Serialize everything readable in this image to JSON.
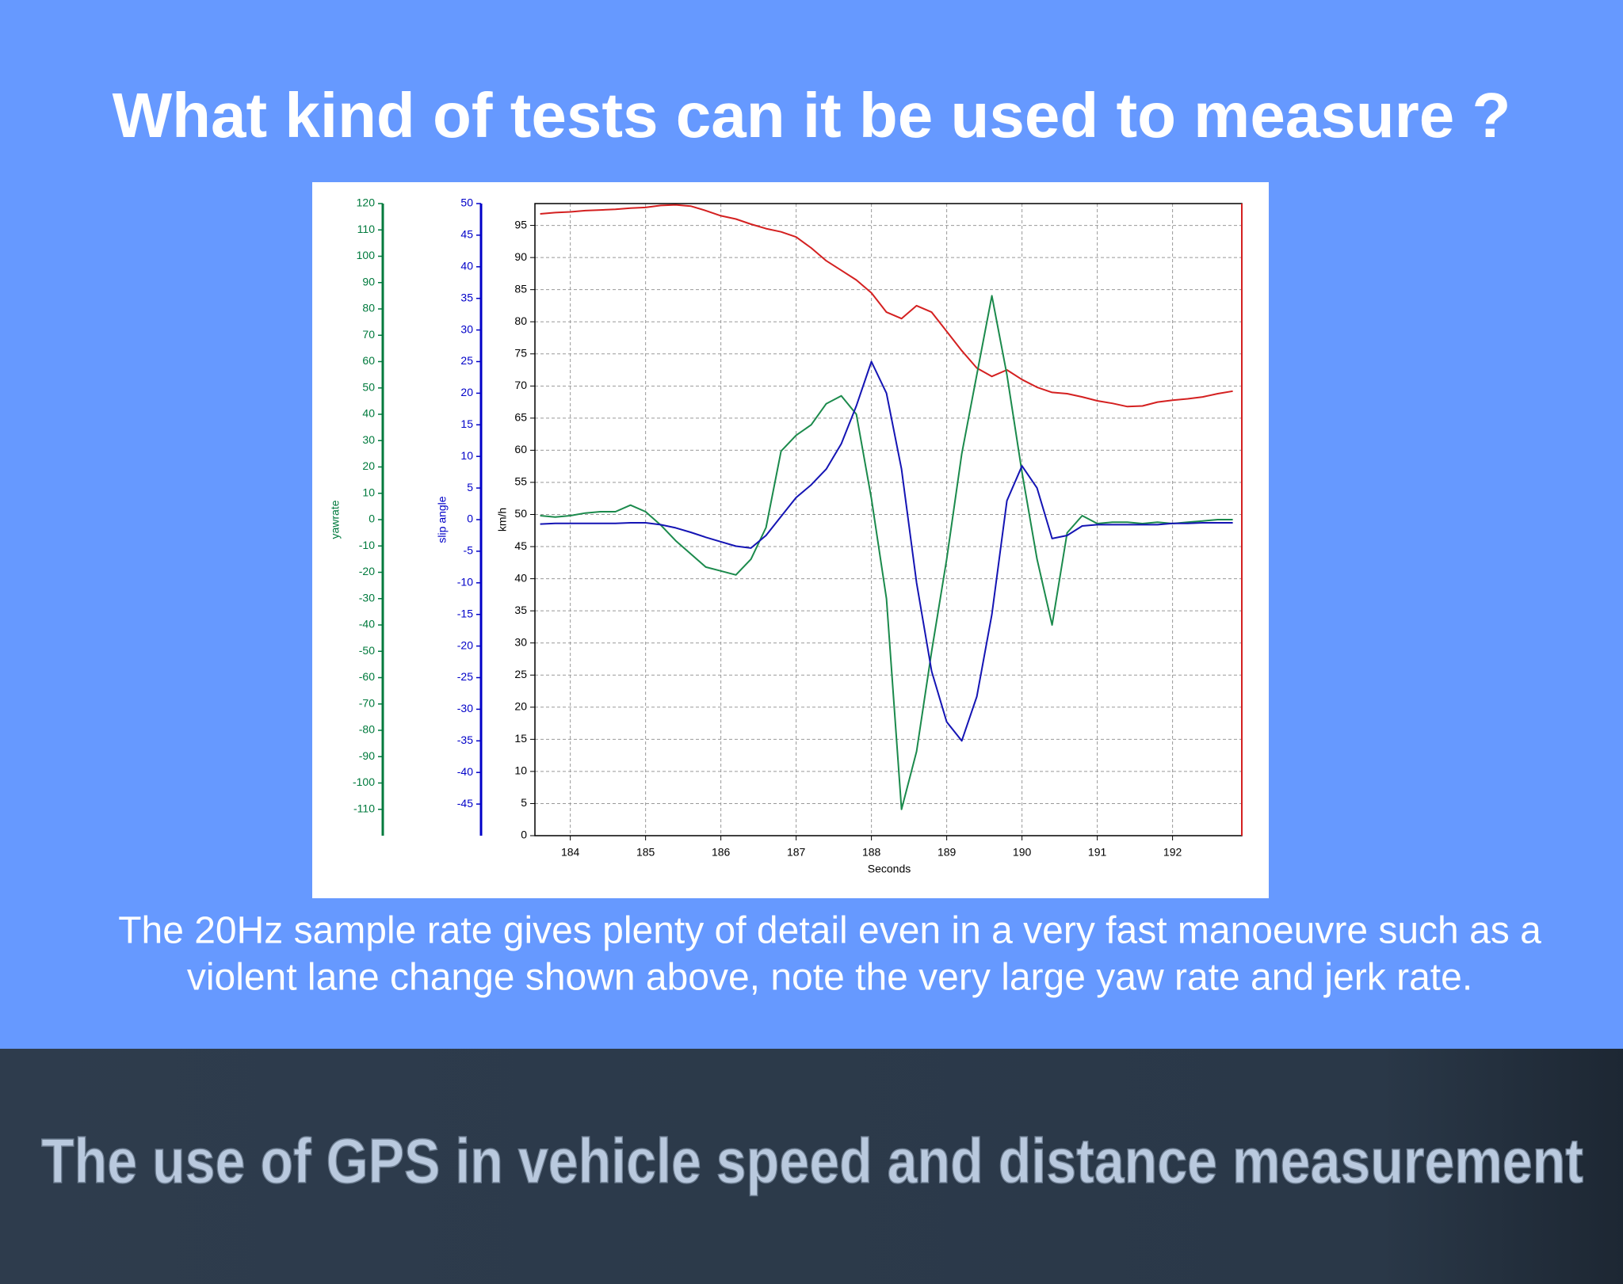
{
  "slide_title": "What kind of tests can it be used to measure ?",
  "caption": [
    "The 20Hz sample rate gives plenty of detail even in a very fast manoeuvre such as a",
    "violent lane change shown above, note the very large yaw rate and jerk rate."
  ],
  "footer": "The use of GPS in vehicle speed and distance measurement",
  "chart_data": {
    "type": "line",
    "xlabel": "Seconds",
    "ylabel": "km/h",
    "y2label": "slip angle",
    "y3label": "yawrate",
    "grid": true,
    "xlim": [
      183.53,
      192.92
    ],
    "xticks": [
      184,
      185,
      186,
      187,
      188,
      189,
      190,
      191,
      192
    ],
    "ylim": [
      0,
      98.4
    ],
    "yticks": [
      0,
      5,
      10,
      15,
      20,
      25,
      30,
      35,
      40,
      45,
      50,
      55,
      60,
      65,
      70,
      75,
      80,
      85,
      90,
      95
    ],
    "y2lim": [
      -50,
      50
    ],
    "y2ticks": [
      -45,
      -40,
      -35,
      -30,
      -25,
      -20,
      -15,
      -10,
      -5,
      0,
      5,
      10,
      15,
      20,
      25,
      30,
      35,
      40,
      45,
      50
    ],
    "y3lim": [
      -120,
      120
    ],
    "y3ticks": [
      -110,
      -100,
      -90,
      -80,
      -70,
      -60,
      -50,
      -40,
      -30,
      -20,
      -10,
      0,
      10,
      20,
      30,
      40,
      50,
      60,
      70,
      80,
      90,
      100,
      110,
      120
    ],
    "x": [
      183.6,
      183.8,
      184.0,
      184.2,
      184.4,
      184.6,
      184.8,
      185.0,
      185.2,
      185.4,
      185.6,
      185.8,
      186.0,
      186.2,
      186.4,
      186.6,
      186.8,
      187.0,
      187.2,
      187.4,
      187.6,
      187.8,
      188.0,
      188.2,
      188.4,
      188.6,
      188.8,
      189.0,
      189.2,
      189.4,
      189.6,
      189.8,
      190.0,
      190.2,
      190.4,
      190.6,
      190.8,
      191.0,
      191.2,
      191.4,
      191.6,
      191.8,
      192.0,
      192.2,
      192.4,
      192.6,
      192.8
    ],
    "series": [
      {
        "color": "#d42020",
        "axis": "y",
        "values": [
          96.8,
          97.0,
          97.1,
          97.3,
          97.4,
          97.5,
          97.7,
          97.8,
          98.1,
          98.2,
          98.0,
          97.3,
          96.5,
          96.0,
          95.2,
          94.5,
          94.0,
          93.2,
          91.5,
          89.5,
          88.0,
          86.5,
          84.5,
          81.5,
          80.5,
          82.5,
          81.5,
          78.5,
          75.5,
          72.8,
          71.5,
          72.5,
          71.0,
          69.8,
          69.0,
          68.8,
          68.3,
          67.7,
          67.3,
          66.8,
          66.9,
          67.5,
          67.8,
          68.0,
          68.3,
          68.8,
          69.2
        ]
      },
      {
        "color": "#1b8a4c",
        "axis": "y3",
        "values": [
          1.5,
          1.0,
          1.5,
          2.5,
          3.0,
          3.0,
          5.5,
          3.0,
          -2,
          -8,
          -13,
          -18,
          -19.5,
          -21,
          -15,
          -3,
          26,
          32,
          36,
          44,
          47,
          40,
          8,
          -30,
          -110,
          -88,
          -50,
          -15,
          25,
          55,
          85,
          55,
          18,
          -15,
          -40,
          -5,
          1.5,
          -1.5,
          -1,
          -1,
          -1.5,
          -1,
          -1.5,
          -1,
          -0.5,
          0,
          0
        ]
      },
      {
        "color": "#1414b4",
        "axis": "y2",
        "values": [
          -0.7,
          -0.6,
          -0.6,
          -0.6,
          -0.6,
          -0.6,
          -0.5,
          -0.5,
          -0.8,
          -1.3,
          -2.0,
          -2.8,
          -3.5,
          -4.2,
          -4.5,
          -2.5,
          0.5,
          3.5,
          5.5,
          8,
          12,
          18,
          25,
          20,
          8,
          -10,
          -24,
          -32,
          -35,
          -28,
          -15,
          3,
          8.5,
          5,
          -3,
          -2.5,
          -1,
          -0.8,
          -0.8,
          -0.8,
          -0.8,
          -0.8,
          -0.6,
          -0.6,
          -0.5,
          -0.5,
          -0.5
        ]
      }
    ]
  }
}
